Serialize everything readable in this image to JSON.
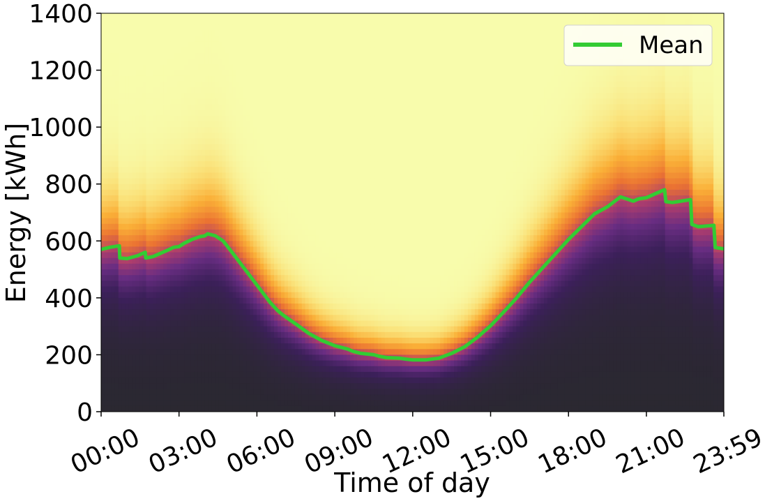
{
  "chart_data": {
    "type": "heatmap",
    "title": "",
    "xlabel": "Time of day",
    "ylabel": "Energy [kWh]",
    "x_ticks": [
      "00:00",
      "03:00",
      "06:00",
      "09:00",
      "12:00",
      "15:00",
      "18:00",
      "21:00",
      "23:59"
    ],
    "x_tick_hours": [
      0,
      3,
      6,
      9,
      12,
      15,
      18,
      21,
      23.983
    ],
    "y_ticks": [
      "0",
      "200",
      "400",
      "600",
      "800",
      "1000",
      "1200",
      "1400"
    ],
    "y_tick_values": [
      0,
      200,
      400,
      600,
      800,
      1000,
      1200,
      1400
    ],
    "xlim_hours": [
      0,
      23.983
    ],
    "ylim": [
      0,
      1400
    ],
    "colormap": "inferno (cumulative probability, dark low energy to pale yellow high energy)",
    "legend": {
      "position": "top-right",
      "entries": [
        "Mean"
      ]
    },
    "series": [
      {
        "name": "Mean",
        "color": "#33cc33",
        "x_hours": [
          0,
          0.35,
          0.7,
          0.72,
          1.0,
          1.4,
          1.7,
          1.72,
          2.0,
          2.5,
          2.8,
          3.0,
          3.2,
          3.5,
          3.8,
          4.0,
          4.1,
          4.4,
          4.7,
          5.0,
          5.5,
          6.0,
          6.5,
          6.8,
          7.0,
          7.5,
          8.0,
          8.5,
          9.0,
          9.5,
          9.7,
          10.0,
          10.5,
          10.7,
          11.0,
          11.5,
          11.7,
          12.0,
          12.5,
          13.0,
          13.5,
          14.0,
          14.5,
          15.0,
          15.5,
          16.0,
          16.5,
          17.0,
          17.5,
          18.0,
          18.5,
          19.0,
          19.5,
          20.0,
          20.5,
          20.7,
          21.0,
          21.5,
          21.7,
          21.75,
          22.0,
          22.7,
          22.75,
          23.0,
          23.6,
          23.65,
          23.983
        ],
        "values": [
          570,
          578,
          583,
          540,
          538,
          548,
          560,
          540,
          545,
          565,
          578,
          580,
          592,
          605,
          615,
          618,
          625,
          618,
          600,
          565,
          505,
          445,
          385,
          355,
          340,
          308,
          275,
          250,
          232,
          220,
          212,
          205,
          200,
          195,
          190,
          188,
          185,
          182,
          182,
          188,
          205,
          228,
          262,
          302,
          350,
          400,
          455,
          505,
          555,
          605,
          650,
          695,
          720,
          755,
          740,
          748,
          752,
          772,
          780,
          738,
          735,
          745,
          658,
          650,
          655,
          577,
          572
        ]
      }
    ]
  }
}
